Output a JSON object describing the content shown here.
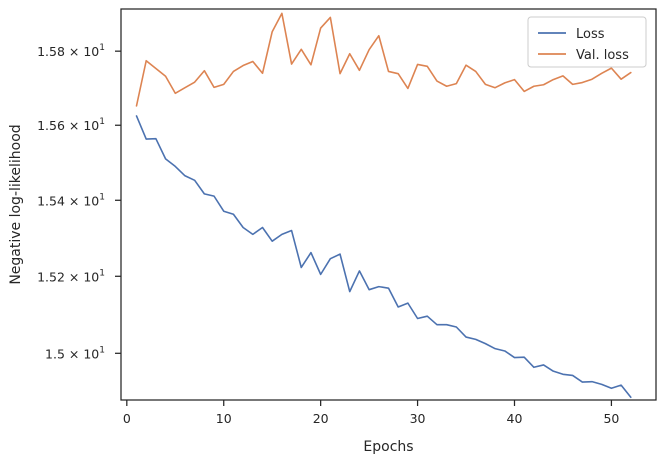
{
  "chart_data": {
    "type": "line",
    "xlabel": "Epochs",
    "ylabel": "Negative log-likelihood",
    "xlim": [
      -0.6,
      54.6
    ],
    "ylim": [
      14.88,
      15.915
    ],
    "yscale": "log",
    "legend_position": "top-right",
    "grid": false,
    "x_ticks": [
      0,
      10,
      20,
      30,
      40,
      50
    ],
    "y_ticks": [
      {
        "value": 15.0,
        "mantissa": "1.5",
        "base": "10",
        "exponent": "1"
      },
      {
        "value": 15.2,
        "mantissa": "1.52",
        "base": "10",
        "exponent": "1"
      },
      {
        "value": 15.4,
        "mantissa": "1.54",
        "base": "10",
        "exponent": "1"
      },
      {
        "value": 15.6,
        "mantissa": "1.56",
        "base": "10",
        "exponent": "1"
      },
      {
        "value": 15.8,
        "mantissa": "1.58",
        "base": "10",
        "exponent": "1"
      }
    ],
    "x": [
      1,
      2,
      3,
      4,
      5,
      6,
      7,
      8,
      9,
      10,
      11,
      12,
      13,
      14,
      15,
      16,
      17,
      18,
      19,
      20,
      21,
      22,
      23,
      24,
      25,
      26,
      27,
      28,
      29,
      30,
      31,
      32,
      33,
      34,
      35,
      36,
      37,
      38,
      39,
      40,
      41,
      42,
      43,
      44,
      45,
      46,
      47,
      48,
      49,
      50,
      51,
      52
    ],
    "series": [
      {
        "name": "Loss",
        "color": "#4c72b0",
        "values": [
          15.625,
          15.563,
          15.564,
          15.51,
          15.49,
          15.465,
          15.453,
          15.417,
          15.411,
          15.371,
          15.363,
          15.328,
          15.31,
          15.328,
          15.292,
          15.31,
          15.32,
          15.223,
          15.262,
          15.205,
          15.246,
          15.258,
          15.16,
          15.214,
          15.165,
          15.173,
          15.169,
          15.12,
          15.13,
          15.09,
          15.096,
          15.074,
          15.074,
          15.068,
          15.042,
          15.036,
          15.025,
          15.012,
          15.006,
          14.989,
          14.99,
          14.964,
          14.97,
          14.954,
          14.946,
          14.943,
          14.926,
          14.927,
          14.92,
          14.91,
          14.918,
          14.887
        ]
      },
      {
        "name": "Val. loss",
        "color": "#dd8452",
        "values": [
          15.652,
          15.774,
          15.753,
          15.732,
          15.686,
          15.701,
          15.716,
          15.747,
          15.702,
          15.71,
          15.745,
          15.761,
          15.772,
          15.74,
          15.853,
          15.903,
          15.765,
          15.805,
          15.763,
          15.863,
          15.892,
          15.739,
          15.793,
          15.748,
          15.804,
          15.842,
          15.745,
          15.739,
          15.699,
          15.764,
          15.759,
          15.719,
          15.705,
          15.712,
          15.762,
          15.745,
          15.71,
          15.701,
          15.714,
          15.723,
          15.691,
          15.705,
          15.709,
          15.723,
          15.733,
          15.71,
          15.715,
          15.724,
          15.74,
          15.754,
          15.724,
          15.742
        ]
      }
    ]
  }
}
